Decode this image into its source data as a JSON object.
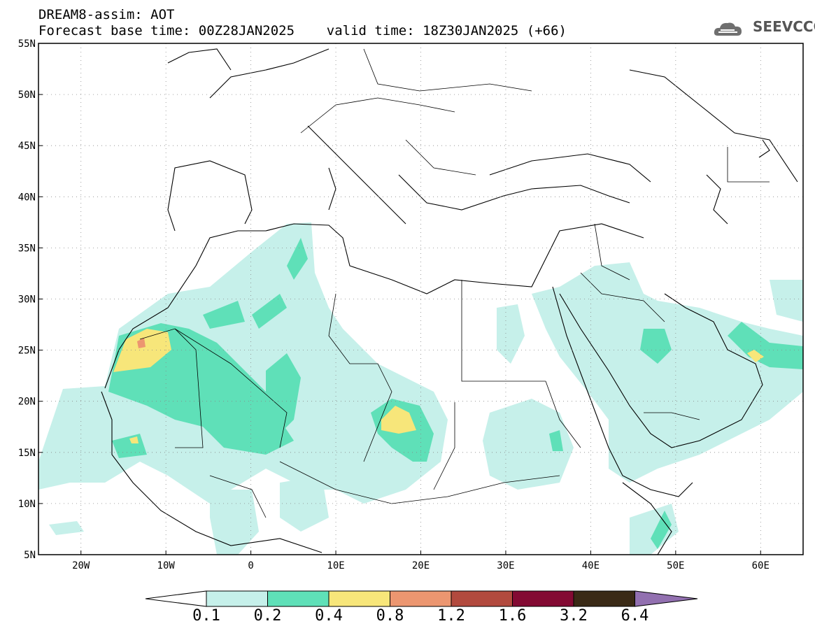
{
  "header": {
    "title": "DREAM8-assim: AOT",
    "forecast_line": "Forecast base time: 00Z28JAN2025    valid time: 18Z30JAN2025 (+66)",
    "logo_text": "SEEVCCC"
  },
  "map": {
    "lon_range": [
      -25,
      65
    ],
    "lat_range": [
      5,
      55
    ],
    "lon_ticks": [
      "20W",
      "10W",
      "0",
      "10E",
      "20E",
      "30E",
      "40E",
      "50E",
      "60E"
    ],
    "lat_ticks": [
      "55N",
      "50N",
      "45N",
      "40N",
      "35N",
      "30N",
      "25N",
      "20N",
      "15N",
      "10N",
      "5N"
    ],
    "grid": "dotted",
    "variable": "Aerosol Optical Thickness"
  },
  "colorbar": {
    "levels": [
      "0.1",
      "0.2",
      "0.4",
      "0.8",
      "1.2",
      "1.6",
      "3.2",
      "6.4"
    ],
    "colors": [
      "#ffffff",
      "#c6f0ea",
      "#5fe0b8",
      "#f7e67a",
      "#ec9670",
      "#b24a3e",
      "#830a33",
      "#3a2a16",
      "#9270b0"
    ]
  }
}
